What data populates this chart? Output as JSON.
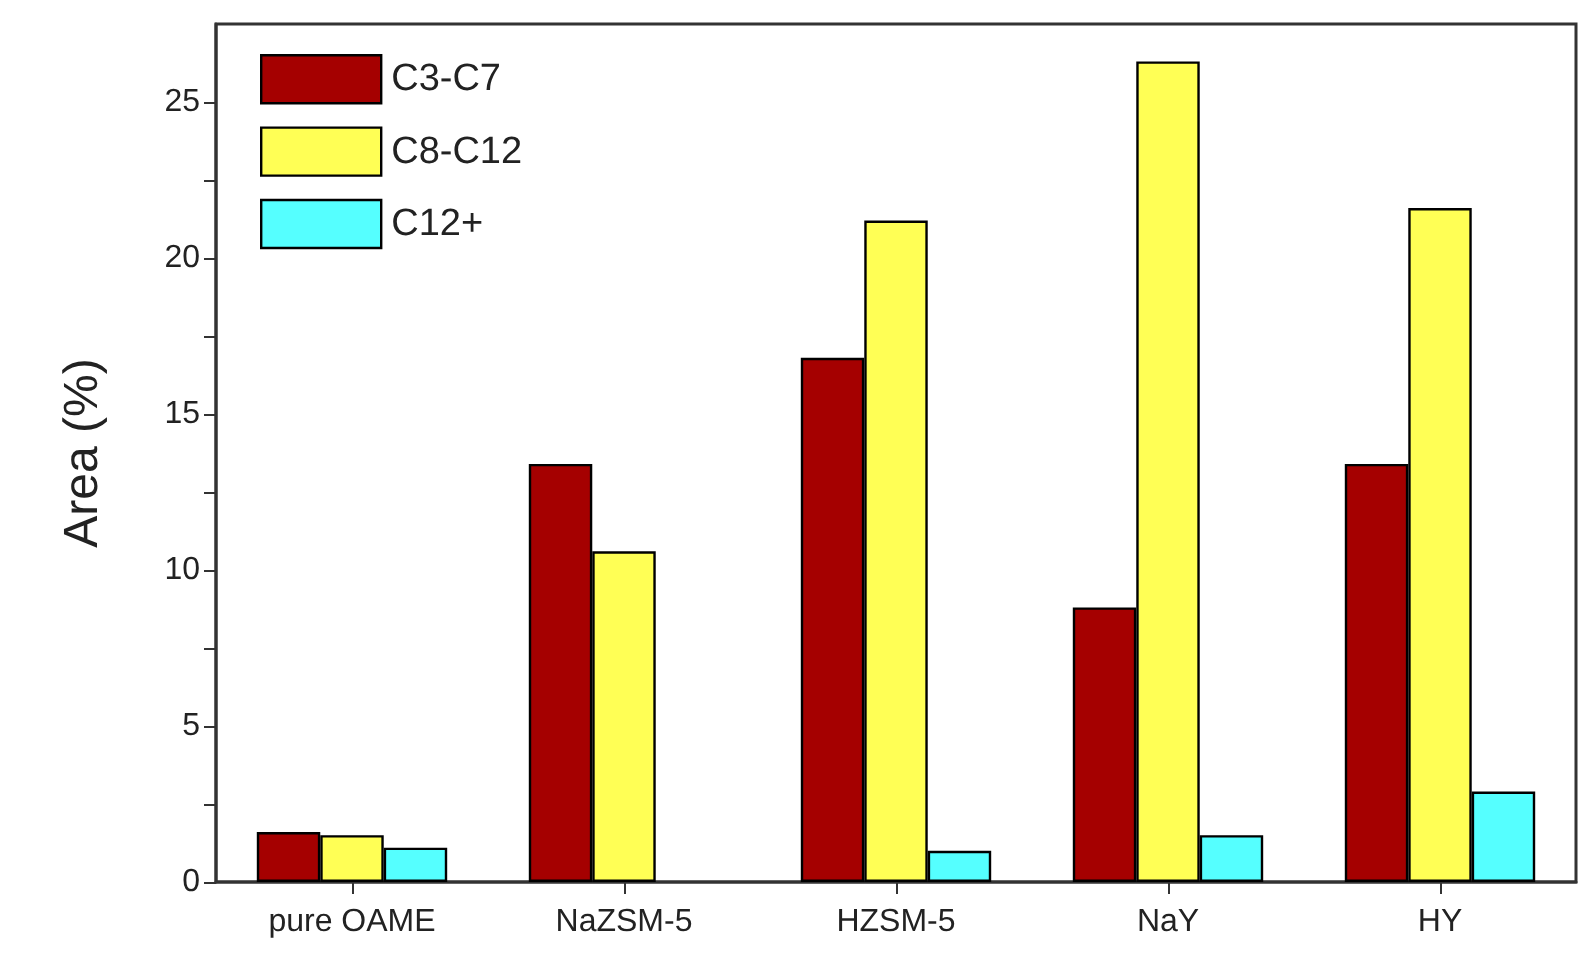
{
  "chart_data": {
    "type": "bar",
    "ylabel": "Area (%)",
    "categories": [
      "pure OAME",
      "NaZSM-5",
      "HZSM-5",
      "NaY",
      "HY"
    ],
    "series": [
      {
        "name": "C3-C7",
        "color": "#a50000",
        "values": [
          1.6,
          13.4,
          16.8,
          8.8,
          13.4
        ]
      },
      {
        "name": "C8-C12",
        "color": "#ffff55",
        "values": [
          1.5,
          10.6,
          21.2,
          26.3,
          21.6
        ]
      },
      {
        "name": "C12+",
        "color": "#55ffff",
        "values": [
          1.1,
          null,
          1.0,
          1.5,
          2.9
        ]
      }
    ],
    "ylim": [
      0,
      27.5
    ],
    "yticks": [
      0,
      {
        "value": 2.5,
        "label": null
      },
      5,
      {
        "value": 7.5,
        "label": null
      },
      10,
      {
        "value": 12.5,
        "label": null
      },
      15,
      {
        "value": 17.5,
        "label": null
      },
      20,
      {
        "value": 22.5,
        "label": null
      },
      25
    ],
    "grid": false,
    "legend": "top left"
  }
}
